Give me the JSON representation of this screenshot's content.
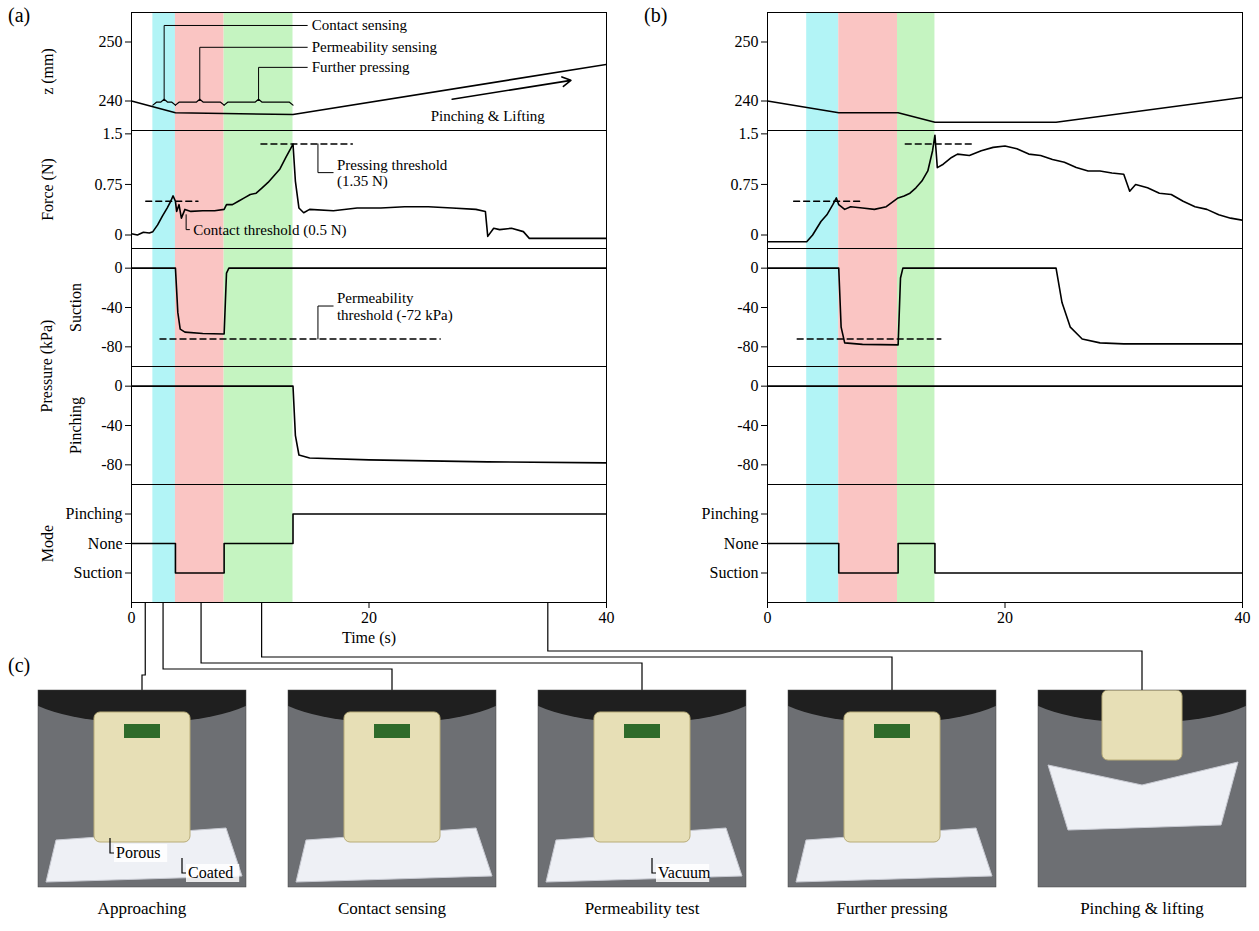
{
  "chart_data": [
    {
      "type": "line",
      "title": "(a)",
      "x_label": "Time (s)",
      "xlim": [
        0,
        40
      ],
      "xticks": [
        0,
        20,
        40
      ],
      "phases": [
        {
          "start": 1.8,
          "end": 3.7,
          "color": "#b2f4f6"
        },
        {
          "start": 3.7,
          "end": 7.8,
          "color": "#fac5c3"
        },
        {
          "start": 7.8,
          "end": 13.6,
          "color": "#c5f4c1"
        }
      ],
      "subplots": [
        {
          "y_label": "z (mm)",
          "ylim": [
            235,
            255
          ],
          "yticks": [
            240,
            250
          ],
          "phase_labels": [
            "Contact sensing",
            "Permeability sensing",
            "Further pressing"
          ],
          "arrow_label": "Pinching & Lifting",
          "series": [
            {
              "color": "#000000",
              "x": [
                0,
                3.7,
                13.6,
                40
              ],
              "values": [
                240,
                238,
                237.7,
                246.2
              ]
            }
          ]
        },
        {
          "y_label": "Force (N)",
          "ylim": [
            -0.2,
            1.55
          ],
          "yticks": [
            0,
            0.75,
            1.5
          ],
          "series": [
            {
              "color": "#000000",
              "x": [
                0,
                0.5,
                1.0,
                1.5,
                1.8,
                2.2,
                2.6,
                3.0,
                3.3,
                3.5,
                3.7,
                3.8,
                4.0,
                4.2,
                4.5,
                5.0,
                6.0,
                7.0,
                7.8,
                8.0,
                8.5,
                9.0,
                9.5,
                10.0,
                10.5,
                11.0,
                11.5,
                12.0,
                12.5,
                13.0,
                13.4,
                13.6,
                13.8,
                14.1,
                14.5,
                15,
                17,
                19,
                21,
                23,
                25,
                27,
                29,
                29.8,
                30.0,
                30.5,
                31,
                32,
                33,
                33.5,
                36,
                40
              ],
              "values": [
                0.02,
                0.0,
                0.04,
                0.03,
                0.05,
                0.15,
                0.28,
                0.4,
                0.5,
                0.58,
                0.5,
                0.35,
                0.45,
                0.25,
                0.38,
                0.35,
                0.36,
                0.36,
                0.38,
                0.45,
                0.45,
                0.5,
                0.55,
                0.6,
                0.62,
                0.7,
                0.78,
                0.88,
                0.98,
                1.15,
                1.28,
                1.35,
                0.8,
                0.4,
                0.33,
                0.38,
                0.36,
                0.4,
                0.4,
                0.42,
                0.42,
                0.4,
                0.38,
                0.35,
                -0.02,
                0.1,
                0.08,
                0.1,
                0.05,
                -0.05,
                -0.05,
                -0.05
              ]
            }
          ],
          "thresholds": [
            {
              "value": 0.5,
              "x": [
                1.2,
                5.6
              ],
              "line_style": "dashed",
              "label": "Contact threshold (0.5 N)"
            },
            {
              "value": 1.35,
              "x": [
                10.9,
                18.6
              ],
              "line_style": "dashed",
              "label": "Pressing threshold (1.35 N)"
            }
          ]
        },
        {
          "y_label": "Suction",
          "y_group_label": "Pressure (kPa)",
          "ylim": [
            -100,
            20
          ],
          "yticks": [
            -80,
            -40,
            0
          ],
          "series": [
            {
              "color": "#000000",
              "x": [
                0,
                3.7,
                3.9,
                4.1,
                4.5,
                6,
                7.8,
                8.0,
                8.2,
                40
              ],
              "values": [
                0,
                0,
                -45,
                -62,
                -65,
                -66.5,
                -67,
                -5,
                0,
                0
              ]
            }
          ],
          "thresholds": [
            {
              "value": -72,
              "x": [
                2.4,
                26
              ],
              "line_style": "dashed",
              "label": "Permeability threshold (-72 kPa)"
            }
          ]
        },
        {
          "y_label": "Pinching",
          "ylim": [
            -100,
            20
          ],
          "yticks": [
            -80,
            -40,
            0
          ],
          "series": [
            {
              "color": "#000000",
              "x": [
                0,
                13.6,
                13.8,
                14.1,
                15,
                20,
                30,
                40
              ],
              "values": [
                0,
                0,
                -50,
                -70,
                -73,
                -75,
                -77,
                -78
              ]
            }
          ]
        },
        {
          "y_label": "Mode",
          "ylim": [
            -1,
            3
          ],
          "yticks": [
            {
              "value": 0,
              "label": "Suction"
            },
            {
              "value": 1,
              "label": "None"
            },
            {
              "value": 2,
              "label": "Pinching"
            }
          ],
          "series": [
            {
              "color": "#000000",
              "x": [
                0,
                3.7,
                3.7,
                7.8,
                7.8,
                13.6,
                13.6,
                40
              ],
              "values": [
                1,
                1,
                0,
                0,
                1,
                1,
                2,
                2
              ]
            }
          ]
        }
      ]
    },
    {
      "type": "line",
      "title": "(b)",
      "xlim": [
        0,
        40
      ],
      "xticks": [
        0,
        20,
        40
      ],
      "phases": [
        {
          "start": 3.3,
          "end": 6.0,
          "color": "#b2f4f6"
        },
        {
          "start": 6.0,
          "end": 10.95,
          "color": "#fac5c3"
        },
        {
          "start": 10.95,
          "end": 14.1,
          "color": "#c5f4c1"
        }
      ],
      "subplots": [
        {
          "ylim": [
            235,
            255
          ],
          "yticks": [
            240,
            250
          ],
          "series": [
            {
              "color": "#000000",
              "x": [
                0,
                6,
                11,
                14.1,
                24.3,
                40
              ],
              "values": [
                240,
                238,
                238,
                236.4,
                236.4,
                240.6
              ]
            }
          ]
        },
        {
          "ylim": [
            -0.2,
            1.55
          ],
          "yticks": [
            0,
            0.75,
            1.5
          ],
          "series": [
            {
              "color": "#000000",
              "x": [
                0,
                3.3,
                3.8,
                4.5,
                5.0,
                5.5,
                5.8,
                6.0,
                6.5,
                7,
                8,
                9,
                10,
                11,
                11.5,
                12,
                12.5,
                13,
                13.5,
                13.9,
                14.1,
                14.3,
                14.8,
                15.5,
                16,
                17,
                18,
                19,
                20,
                21,
                22,
                23,
                24,
                25,
                26,
                27,
                28,
                29,
                30,
                30.5,
                31,
                32,
                33,
                34,
                35,
                36,
                37,
                38,
                39,
                40
              ],
              "values": [
                -0.1,
                -0.1,
                0.0,
                0.2,
                0.3,
                0.45,
                0.55,
                0.45,
                0.38,
                0.42,
                0.4,
                0.38,
                0.42,
                0.55,
                0.58,
                0.62,
                0.7,
                0.8,
                0.95,
                1.25,
                1.48,
                1.0,
                1.05,
                1.15,
                1.2,
                1.18,
                1.25,
                1.3,
                1.32,
                1.28,
                1.2,
                1.18,
                1.12,
                1.08,
                1.0,
                0.95,
                0.95,
                0.92,
                0.9,
                0.65,
                0.75,
                0.7,
                0.62,
                0.6,
                0.5,
                0.42,
                0.38,
                0.3,
                0.25,
                0.22
              ]
            }
          ],
          "thresholds": [
            {
              "value": 0.5,
              "x": [
                2.2,
                7.8
              ],
              "line_style": "dashed"
            },
            {
              "value": 1.35,
              "x": [
                11.6,
                17.3
              ],
              "line_style": "dashed"
            }
          ]
        },
        {
          "ylim": [
            -100,
            20
          ],
          "yticks": [
            -80,
            -40,
            0
          ],
          "series": [
            {
              "color": "#000000",
              "x": [
                0,
                6.0,
                6.2,
                6.5,
                8,
                11,
                11.2,
                11.4,
                24.3,
                24.8,
                25.5,
                26.5,
                28,
                30,
                40
              ],
              "values": [
                0,
                0,
                -60,
                -76,
                -77.5,
                -78,
                -10,
                0,
                0,
                -35,
                -60,
                -72,
                -76,
                -77,
                -77
              ]
            }
          ],
          "thresholds": [
            {
              "value": -72,
              "x": [
                2.5,
                14.6
              ],
              "line_style": "dashed"
            }
          ]
        },
        {
          "ylim": [
            -100,
            20
          ],
          "yticks": [
            -80,
            -40,
            0
          ],
          "series": [
            {
              "color": "#000000",
              "x": [
                0,
                40
              ],
              "values": [
                0,
                0
              ]
            }
          ]
        },
        {
          "ylim": [
            -1,
            3
          ],
          "yticks": [
            {
              "value": 0,
              "label": "Suction"
            },
            {
              "value": 1,
              "label": "None"
            },
            {
              "value": 2,
              "label": "Pinching"
            }
          ],
          "series": [
            {
              "color": "#000000",
              "x": [
                0,
                6.0,
                6.0,
                11,
                11,
                14.1,
                14.1,
                40
              ],
              "values": [
                1,
                1,
                0,
                0,
                1,
                1,
                0,
                0
              ]
            }
          ]
        }
      ]
    }
  ],
  "photos": {
    "label": "(c)",
    "items": [
      {
        "caption": "Approaching",
        "time": 1.2,
        "labels": [
          "Porous",
          "Coated"
        ]
      },
      {
        "caption": "Contact sensing",
        "time": 2.7
      },
      {
        "caption": "Permeability test",
        "time": 5.9,
        "labels": [
          "Vacuum"
        ]
      },
      {
        "caption": "Further pressing",
        "time": 11.0
      },
      {
        "caption": "Pinching & lifting",
        "time": 35.1
      }
    ]
  }
}
